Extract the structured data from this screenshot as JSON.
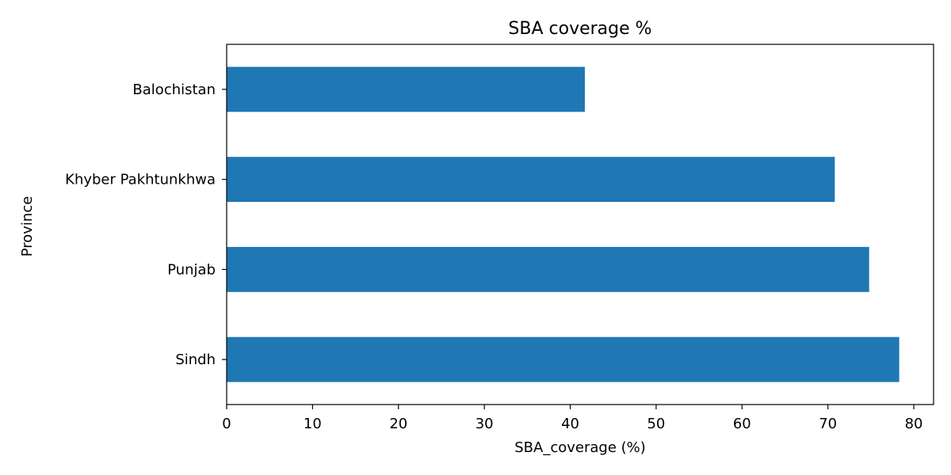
{
  "chart_data": {
    "type": "bar",
    "orientation": "horizontal",
    "title": "SBA coverage %",
    "xlabel": "SBA_coverage (%)",
    "ylabel": "Province",
    "categories": [
      "Balochistan",
      "Khyber Pakhtunkhwa",
      "Punjab",
      "Sindh"
    ],
    "values": [
      41.7,
      70.8,
      74.8,
      78.3
    ],
    "xlim": [
      0,
      82.3
    ],
    "xticks": [
      0,
      10,
      20,
      30,
      40,
      50,
      60,
      70,
      80
    ],
    "grid": false,
    "bar_color": "#1f77b4"
  }
}
